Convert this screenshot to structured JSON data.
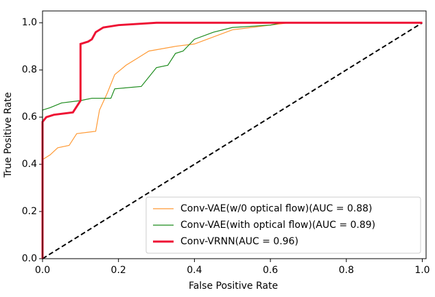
{
  "chart_data": {
    "type": "line",
    "xlabel": "False Positive Rate",
    "ylabel": "True Positive Rate",
    "xlim": [
      0,
      1.01
    ],
    "ylim": [
      0,
      1.05
    ],
    "xticks": [
      {
        "value": 0,
        "label": "0.0"
      },
      0.2,
      0.4,
      0.6,
      0.8,
      {
        "value": 1,
        "label": "1.0"
      }
    ],
    "yticks": [
      {
        "value": 0,
        "label": "0.0"
      },
      0.2,
      0.4,
      0.6,
      0.8,
      {
        "value": 1,
        "label": "1.0"
      }
    ],
    "grid": false,
    "legend": "lower right",
    "series": [
      {
        "name": "Conv-VAE(w/0 optical flow)(AUC = 0.88)",
        "color": "#ff9933",
        "width": 1.2,
        "x": [
          0,
          0,
          0.02,
          0.04,
          0.07,
          0.09,
          0.14,
          0.15,
          0.17,
          0.19,
          0.22,
          0.25,
          0.28,
          0.35,
          0.4,
          0.45,
          0.5,
          0.55,
          0.6,
          0.65,
          1
        ],
        "values": [
          0,
          0.42,
          0.44,
          0.47,
          0.48,
          0.53,
          0.54,
          0.63,
          0.7,
          0.78,
          0.82,
          0.85,
          0.88,
          0.9,
          0.91,
          0.94,
          0.97,
          0.98,
          0.99,
          1,
          1
        ]
      },
      {
        "name": "Conv-VAE(with optical flow)(AUC = 0.89)",
        "color": "#1a8a1a",
        "width": 1.2,
        "x": [
          0,
          0,
          0.02,
          0.05,
          0.1,
          0.13,
          0.18,
          0.19,
          0.26,
          0.3,
          0.33,
          0.35,
          0.37,
          0.4,
          0.45,
          0.5,
          0.6,
          0.63,
          1
        ],
        "values": [
          0,
          0.63,
          0.64,
          0.66,
          0.67,
          0.68,
          0.68,
          0.72,
          0.73,
          0.81,
          0.82,
          0.87,
          0.88,
          0.93,
          0.96,
          0.98,
          0.99,
          1,
          1
        ]
      },
      {
        "name": "Conv-VRNN(AUC = 0.96)",
        "color": "#ee1133",
        "width": 3,
        "x": [
          0,
          0,
          0.01,
          0.03,
          0.08,
          0.1,
          0.1,
          0.12,
          0.13,
          0.14,
          0.16,
          0.2,
          0.3,
          1
        ],
        "values": [
          0,
          0.58,
          0.6,
          0.61,
          0.62,
          0.67,
          0.91,
          0.92,
          0.93,
          0.96,
          0.98,
          0.99,
          1,
          1
        ]
      }
    ],
    "reference_line": {
      "x": [
        0,
        1
      ],
      "values": [
        0,
        1
      ],
      "color": "#000000"
    }
  }
}
